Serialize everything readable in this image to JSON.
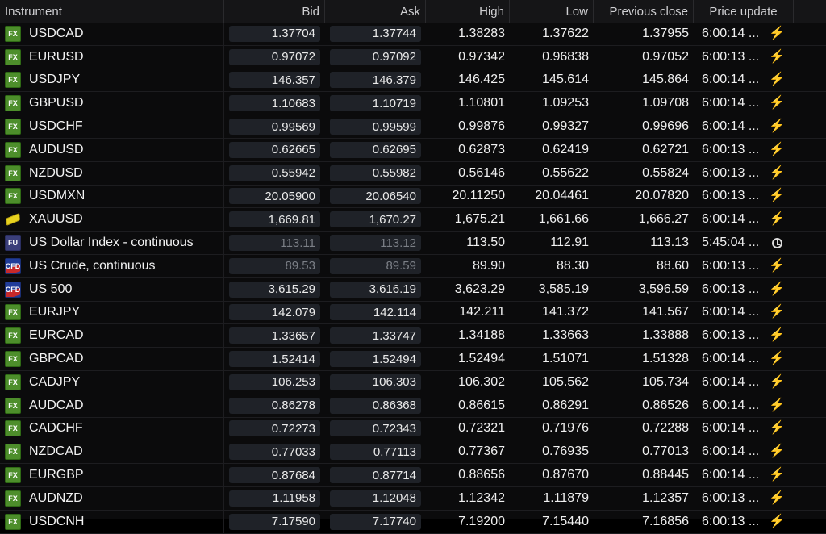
{
  "table": {
    "columns": {
      "instrument": "Instrument",
      "bid": "Bid",
      "ask": "Ask",
      "high": "High",
      "low": "Low",
      "prev_close": "Previous close",
      "update": "Price update"
    },
    "rows": [
      {
        "badge": "FX",
        "type": "fx",
        "name": "USDCAD",
        "bid": "1.37704",
        "ask": "1.37744",
        "high": "1.38283",
        "low": "1.37622",
        "prev": "1.37955",
        "time": "6:00:14 ...",
        "icon": "bolt-icon"
      },
      {
        "badge": "FX",
        "type": "fx",
        "name": "EURUSD",
        "bid": "0.97072",
        "ask": "0.97092",
        "high": "0.97342",
        "low": "0.96838",
        "prev": "0.97052",
        "time": "6:00:13 ...",
        "icon": "bolt-icon"
      },
      {
        "badge": "FX",
        "type": "fx",
        "name": "USDJPY",
        "bid": "146.357",
        "ask": "146.379",
        "high": "146.425",
        "low": "145.614",
        "prev": "145.864",
        "time": "6:00:14 ...",
        "icon": "bolt-icon"
      },
      {
        "badge": "FX",
        "type": "fx",
        "name": "GBPUSD",
        "bid": "1.10683",
        "ask": "1.10719",
        "high": "1.10801",
        "low": "1.09253",
        "prev": "1.09708",
        "time": "6:00:14 ...",
        "icon": "bolt-icon"
      },
      {
        "badge": "FX",
        "type": "fx",
        "name": "USDCHF",
        "bid": "0.99569",
        "ask": "0.99599",
        "high": "0.99876",
        "low": "0.99327",
        "prev": "0.99696",
        "time": "6:00:14 ...",
        "icon": "bolt-icon"
      },
      {
        "badge": "FX",
        "type": "fx",
        "name": "AUDUSD",
        "bid": "0.62665",
        "ask": "0.62695",
        "high": "0.62873",
        "low": "0.62419",
        "prev": "0.62721",
        "time": "6:00:13 ...",
        "icon": "bolt-icon"
      },
      {
        "badge": "FX",
        "type": "fx",
        "name": "NZDUSD",
        "bid": "0.55942",
        "ask": "0.55982",
        "high": "0.56146",
        "low": "0.55622",
        "prev": "0.55824",
        "time": "6:00:13 ...",
        "icon": "bolt-icon"
      },
      {
        "badge": "FX",
        "type": "fx",
        "name": "USDMXN",
        "bid": "20.05900",
        "ask": "20.06540",
        "high": "20.11250",
        "low": "20.04461",
        "prev": "20.07820",
        "time": "6:00:13 ...",
        "icon": "bolt-icon"
      },
      {
        "badge": "",
        "type": "gold",
        "name": "XAUUSD",
        "bid": "1,669.81",
        "ask": "1,670.27",
        "high": "1,675.21",
        "low": "1,661.66",
        "prev": "1,666.27",
        "time": "6:00:14 ...",
        "icon": "bolt-icon"
      },
      {
        "badge": "FU",
        "type": "fu",
        "name": "US Dollar Index - continuous",
        "bid": "113.11",
        "ask": "113.12",
        "high": "113.50",
        "low": "112.91",
        "prev": "113.13",
        "time": "5:45:04 ...",
        "icon": "clock-icon",
        "dim": true
      },
      {
        "badge": "CFD",
        "type": "cfd",
        "name": "US Crude, continuous",
        "bid": "89.53",
        "ask": "89.59",
        "high": "89.90",
        "low": "88.30",
        "prev": "88.60",
        "time": "6:00:13 ...",
        "icon": "bolt-icon",
        "dim": true
      },
      {
        "badge": "CFD",
        "type": "cfd",
        "name": "US 500",
        "bid": "3,615.29",
        "ask": "3,616.19",
        "high": "3,623.29",
        "low": "3,585.19",
        "prev": "3,596.59",
        "time": "6:00:13 ...",
        "icon": "bolt-icon"
      },
      {
        "badge": "FX",
        "type": "fx",
        "name": "EURJPY",
        "bid": "142.079",
        "ask": "142.114",
        "high": "142.211",
        "low": "141.372",
        "prev": "141.567",
        "time": "6:00:14 ...",
        "icon": "bolt-icon"
      },
      {
        "badge": "FX",
        "type": "fx",
        "name": "EURCAD",
        "bid": "1.33657",
        "ask": "1.33747",
        "high": "1.34188",
        "low": "1.33663",
        "prev": "1.33888",
        "time": "6:00:13 ...",
        "icon": "bolt-icon"
      },
      {
        "badge": "FX",
        "type": "fx",
        "name": "GBPCAD",
        "bid": "1.52414",
        "ask": "1.52494",
        "high": "1.52494",
        "low": "1.51071",
        "prev": "1.51328",
        "time": "6:00:14 ...",
        "icon": "bolt-icon"
      },
      {
        "badge": "FX",
        "type": "fx",
        "name": "CADJPY",
        "bid": "106.253",
        "ask": "106.303",
        "high": "106.302",
        "low": "105.562",
        "prev": "105.734",
        "time": "6:00:14 ...",
        "icon": "bolt-icon"
      },
      {
        "badge": "FX",
        "type": "fx",
        "name": "AUDCAD",
        "bid": "0.86278",
        "ask": "0.86368",
        "high": "0.86615",
        "low": "0.86291",
        "prev": "0.86526",
        "time": "6:00:14 ...",
        "icon": "bolt-icon"
      },
      {
        "badge": "FX",
        "type": "fx",
        "name": "CADCHF",
        "bid": "0.72273",
        "ask": "0.72343",
        "high": "0.72321",
        "low": "0.71976",
        "prev": "0.72288",
        "time": "6:00:14 ...",
        "icon": "bolt-icon"
      },
      {
        "badge": "FX",
        "type": "fx",
        "name": "NZDCAD",
        "bid": "0.77033",
        "ask": "0.77113",
        "high": "0.77367",
        "low": "0.76935",
        "prev": "0.77013",
        "time": "6:00:14 ...",
        "icon": "bolt-icon"
      },
      {
        "badge": "FX",
        "type": "fx",
        "name": "EURGBP",
        "bid": "0.87684",
        "ask": "0.87714",
        "high": "0.88656",
        "low": "0.87670",
        "prev": "0.88445",
        "time": "6:00:14 ...",
        "icon": "bolt-icon"
      },
      {
        "badge": "FX",
        "type": "fx",
        "name": "AUDNZD",
        "bid": "1.11958",
        "ask": "1.12048",
        "high": "1.12342",
        "low": "1.11879",
        "prev": "1.12357",
        "time": "6:00:13 ...",
        "icon": "bolt-icon"
      },
      {
        "badge": "FX",
        "type": "fx",
        "name": "USDCNH",
        "bid": "7.17590",
        "ask": "7.17740",
        "high": "7.19200",
        "low": "7.15440",
        "prev": "7.16856",
        "time": "6:00:13 ...",
        "icon": "bolt-icon"
      }
    ]
  },
  "colors": {
    "background": "#0b0b0c",
    "pill": "#1f2228",
    "fx_badge": "#4d8e2b",
    "cfd_badge": "#203c9a",
    "bolt": "#4fbf3a"
  }
}
